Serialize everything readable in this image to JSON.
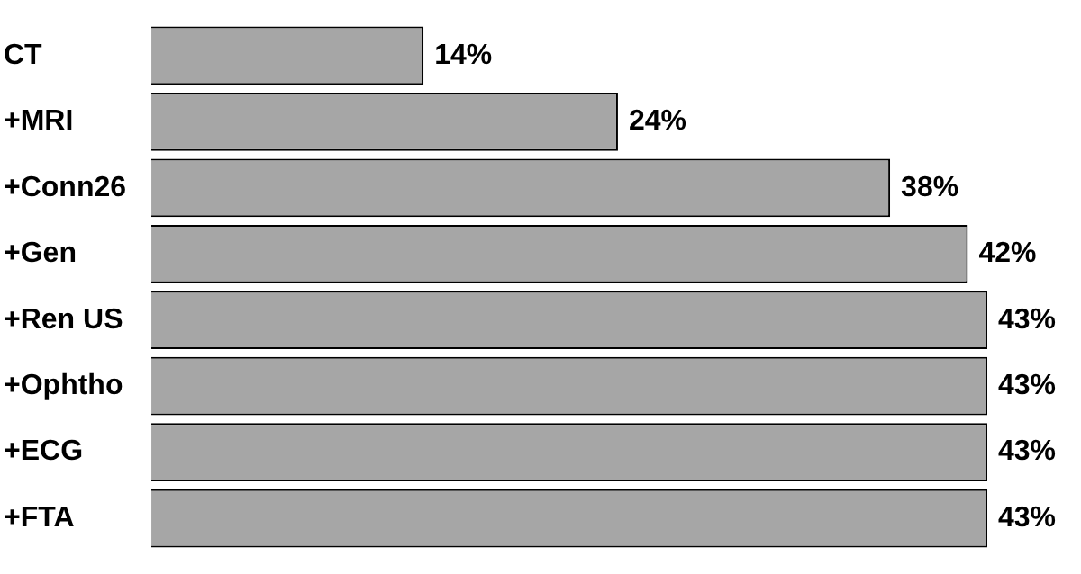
{
  "chart_data": {
    "type": "bar",
    "orientation": "horizontal",
    "categories": [
      "CT",
      "+MRI",
      "+Conn26",
      "+Gen",
      "+Ren US",
      "+Ophtho",
      "+ECG",
      "+FTA"
    ],
    "values": [
      14,
      24,
      38,
      42,
      43,
      43,
      43,
      43
    ],
    "color": "#a6a6a6",
    "value_labels": [
      "14%",
      "24%",
      "38%",
      "42%",
      "43%",
      "43%",
      "43%",
      "43%"
    ],
    "legend": false
  }
}
